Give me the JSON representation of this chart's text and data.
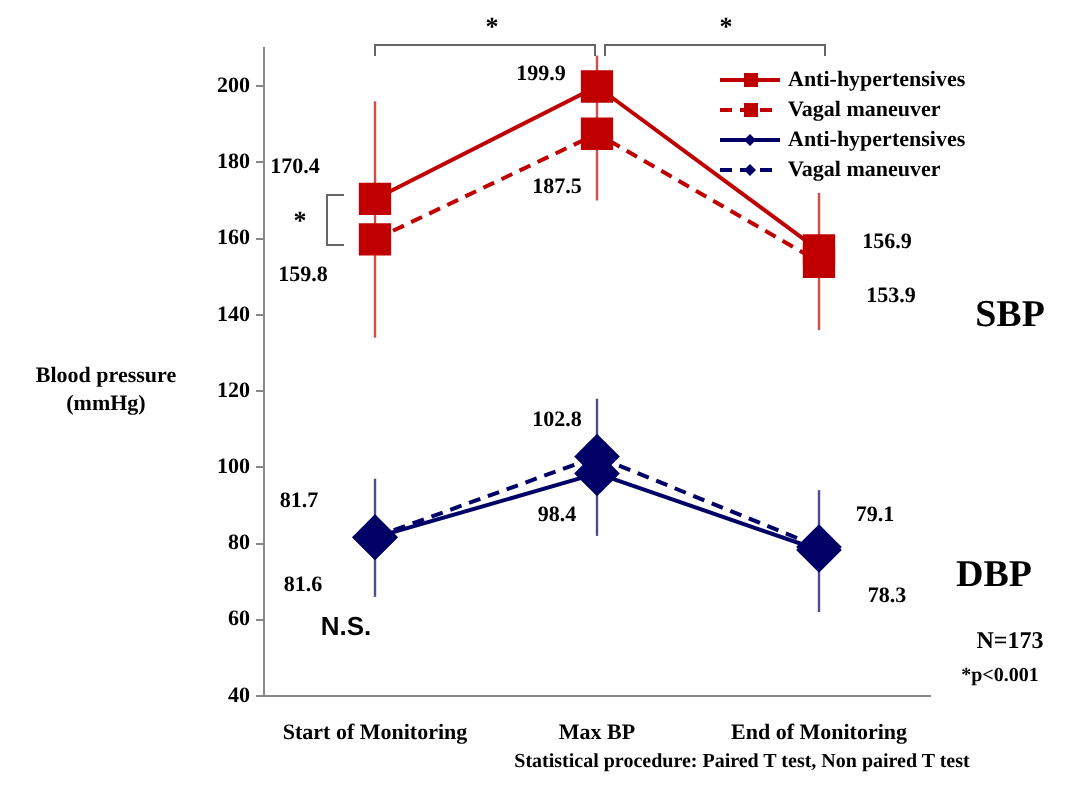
{
  "chart_data": {
    "type": "line",
    "ylabel": "Blood pressure (mmHg)",
    "categories": [
      "Start of Monitoring",
      "Max BP",
      "End of Monitoring"
    ],
    "ylim": [
      40,
      210
    ],
    "yticks": [
      40,
      60,
      80,
      100,
      120,
      140,
      160,
      180,
      200
    ],
    "grid": false,
    "legend": "top right",
    "data_labels": true,
    "series": [
      {
        "name": "Anti-hypertensives",
        "color": "#c00000",
        "marker": "square",
        "line_style": "solid",
        "values": [
          170.4,
          199.9,
          156.9
        ],
        "errors": [
          [
            134,
            196
          ],
          [
            170,
            208
          ],
          [
            136,
            172
          ]
        ]
      },
      {
        "name": "Vagal maneuver",
        "color": "#c00000",
        "marker": "square",
        "line_style": "dashed",
        "values": [
          159.8,
          187.5,
          153.9
        ]
      },
      {
        "name": "Anti-hypertensives",
        "color": "#000066",
        "marker": "diamond",
        "line_style": "solid",
        "values": [
          81.6,
          98.4,
          78.3
        ],
        "errors": [
          [
            66,
            97
          ],
          [
            82,
            118
          ],
          [
            62,
            94
          ]
        ]
      },
      {
        "name": "Vagal maneuver",
        "color": "#000066",
        "marker": "diamond",
        "line_style": "dashed",
        "values": [
          81.7,
          102.8,
          79.1
        ]
      }
    ],
    "annotations": [
      "*",
      "*",
      "*",
      "SBP",
      "DBP",
      "N.S.",
      "N=173",
      "*p<0.001",
      "Statistical procedure: Paired T test, Non paired T test"
    ]
  }
}
